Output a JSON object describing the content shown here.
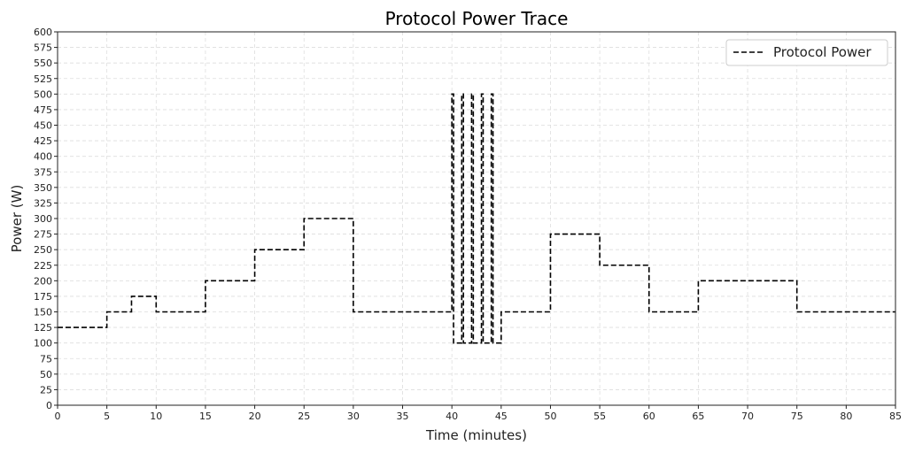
{
  "chart_data": {
    "type": "line",
    "title": "Protocol Power Trace",
    "xlabel": "Time (minutes)",
    "ylabel": "Power (W)",
    "xlim": [
      0,
      85
    ],
    "ylim": [
      0,
      600
    ],
    "xticks": [
      0,
      5,
      10,
      15,
      20,
      25,
      30,
      35,
      40,
      45,
      50,
      55,
      60,
      65,
      70,
      75,
      80,
      85
    ],
    "yticks": [
      0,
      25,
      50,
      75,
      100,
      125,
      150,
      175,
      200,
      225,
      250,
      275,
      300,
      325,
      350,
      375,
      400,
      425,
      450,
      475,
      500,
      525,
      550,
      575,
      600
    ],
    "grid": true,
    "legend_position": "upper right",
    "series": [
      {
        "name": "Protocol Power",
        "style": "dashed",
        "color": "#000000",
        "step_segments": [
          {
            "start": 0,
            "end": 5,
            "value": 125
          },
          {
            "start": 5,
            "end": 7.5,
            "value": 150
          },
          {
            "start": 7.5,
            "end": 10,
            "value": 175
          },
          {
            "start": 10,
            "end": 15,
            "value": 150
          },
          {
            "start": 15,
            "end": 20,
            "value": 200
          },
          {
            "start": 20,
            "end": 25,
            "value": 250
          },
          {
            "start": 25,
            "end": 30,
            "value": 300
          },
          {
            "start": 30,
            "end": 40,
            "value": 150
          },
          {
            "start": 40,
            "end": 40.17,
            "value": 500
          },
          {
            "start": 40.17,
            "end": 41,
            "value": 100
          },
          {
            "start": 41,
            "end": 41.17,
            "value": 500
          },
          {
            "start": 41.17,
            "end": 42,
            "value": 100
          },
          {
            "start": 42,
            "end": 42.17,
            "value": 500
          },
          {
            "start": 42.17,
            "end": 43,
            "value": 100
          },
          {
            "start": 43,
            "end": 43.17,
            "value": 500
          },
          {
            "start": 43.17,
            "end": 44,
            "value": 100
          },
          {
            "start": 44,
            "end": 44.17,
            "value": 500
          },
          {
            "start": 44.17,
            "end": 45,
            "value": 100
          },
          {
            "start": 45,
            "end": 50,
            "value": 150
          },
          {
            "start": 50,
            "end": 55,
            "value": 275
          },
          {
            "start": 55,
            "end": 60,
            "value": 225
          },
          {
            "start": 60,
            "end": 65,
            "value": 150
          },
          {
            "start": 65,
            "end": 75,
            "value": 200
          },
          {
            "start": 75,
            "end": 85,
            "value": 150
          }
        ]
      }
    ]
  }
}
